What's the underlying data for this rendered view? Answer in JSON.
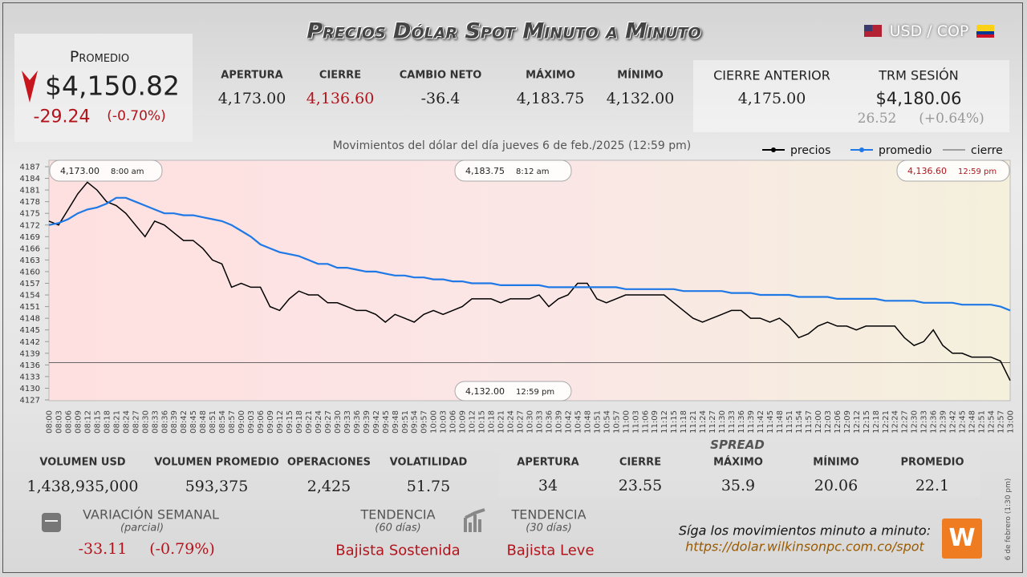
{
  "header": {
    "title": "Precios Dólar Spot Minuto a Minuto",
    "pair": "USD / COP"
  },
  "summary": {
    "label": "Promedio",
    "price": "$4,150.82",
    "change": "-29.24",
    "change_pct": "(-0.70%)"
  },
  "session": {
    "items": [
      {
        "label": "APERTURA",
        "value": "4,173.00"
      },
      {
        "label": "CIERRE",
        "value": "4,136.60"
      },
      {
        "label": "CAMBIO NETO",
        "value": "-36.4"
      },
      {
        "label": "MÁXIMO",
        "value": "4,183.75"
      },
      {
        "label": "MÍNIMO",
        "value": "4,132.00"
      }
    ]
  },
  "previous": {
    "label": "CIERRE ANTERIOR",
    "value": "4,175.00"
  },
  "trm": {
    "label": "TRM SESIÓN",
    "value": "$4,180.06",
    "change": "26.52",
    "change_pct": "(+0.64%)"
  },
  "chart_data": {
    "type": "line",
    "subtitle": "Movimientos del dólar del día jueves 6 de feb./2025 (12:59 pm)",
    "categories": [
      "08:00",
      "08:03",
      "08:06",
      "08:09",
      "08:12",
      "08:15",
      "08:18",
      "08:21",
      "08:24",
      "08:27",
      "08:30",
      "08:33",
      "08:36",
      "08:39",
      "08:42",
      "08:45",
      "08:48",
      "08:51",
      "08:54",
      "08:57",
      "09:00",
      "09:03",
      "09:06",
      "09:09",
      "09:12",
      "09:15",
      "09:18",
      "09:21",
      "09:24",
      "09:27",
      "09:30",
      "09:33",
      "09:36",
      "09:39",
      "09:42",
      "09:45",
      "09:48",
      "09:51",
      "09:54",
      "09:57",
      "10:00",
      "10:03",
      "10:06",
      "10:09",
      "10:12",
      "10:15",
      "10:18",
      "10:21",
      "10:24",
      "10:27",
      "10:30",
      "10:33",
      "10:36",
      "10:39",
      "10:42",
      "10:45",
      "10:48",
      "10:51",
      "10:54",
      "10:57",
      "11:00",
      "11:03",
      "11:06",
      "11:09",
      "11:12",
      "11:15",
      "11:18",
      "11:21",
      "11:24",
      "11:27",
      "11:30",
      "11:33",
      "11:36",
      "11:39",
      "11:42",
      "11:45",
      "11:48",
      "11:51",
      "11:54",
      "11:57",
      "12:00",
      "12:03",
      "12:06",
      "12:09",
      "12:12",
      "12:15",
      "12:18",
      "12:21",
      "12:24",
      "12:27",
      "12:30",
      "12:33",
      "12:36",
      "12:39",
      "12:42",
      "12:45",
      "12:48",
      "12:51",
      "12:54",
      "12:57",
      "13:00"
    ],
    "series": [
      {
        "name": "precios",
        "color": "#000000",
        "values": [
          4173,
          4172,
          4176,
          4180,
          4183,
          4181,
          4178,
          4177,
          4175,
          4172,
          4169,
          4173,
          4172,
          4170,
          4168,
          4168,
          4166,
          4163,
          4162,
          4156,
          4157,
          4156,
          4156,
          4151,
          4150,
          4153,
          4155,
          4154,
          4154,
          4152,
          4152,
          4151,
          4150,
          4150,
          4149,
          4147,
          4149,
          4148,
          4147,
          4149,
          4150,
          4149,
          4150,
          4151,
          4153,
          4153,
          4153,
          4152,
          4153,
          4153,
          4153,
          4154,
          4151,
          4153,
          4154,
          4157,
          4157,
          4153,
          4152,
          4153,
          4154,
          4154,
          4154,
          4154,
          4154,
          4152,
          4150,
          4148,
          4147,
          4148,
          4149,
          4150,
          4150,
          4148,
          4148,
          4147,
          4148,
          4146,
          4143,
          4144,
          4146,
          4147,
          4146,
          4146,
          4145,
          4146,
          4146,
          4146,
          4146,
          4143,
          4141,
          4142,
          4145,
          4141,
          4139,
          4139,
          4138,
          4138,
          4138,
          4137,
          4132
        ]
      },
      {
        "name": "promedio",
        "color": "#1e78e6",
        "values": [
          4172,
          4172.5,
          4173.5,
          4175,
          4176,
          4176.5,
          4177.5,
          4179,
          4179,
          4178,
          4177,
          4176,
          4175,
          4175,
          4174.5,
          4174.5,
          4174,
          4173.5,
          4173,
          4172,
          4170.5,
          4169,
          4167,
          4166,
          4165,
          4164.5,
          4164,
          4163,
          4162,
          4162,
          4161,
          4161,
          4160.5,
          4160,
          4160,
          4159.5,
          4159,
          4159,
          4158.5,
          4158.5,
          4158,
          4158,
          4157.5,
          4157.5,
          4157,
          4157,
          4157,
          4156.5,
          4156.5,
          4156.5,
          4156.5,
          4156.5,
          4156,
          4156,
          4156,
          4156,
          4156,
          4156,
          4156,
          4156,
          4155.5,
          4155.5,
          4155.5,
          4155.5,
          4155.5,
          4155.5,
          4155,
          4155,
          4155,
          4155,
          4155,
          4154.5,
          4154.5,
          4154.5,
          4154,
          4154,
          4154,
          4154,
          4153.5,
          4153.5,
          4153.5,
          4153.5,
          4153,
          4153,
          4153,
          4153,
          4153,
          4152.5,
          4152.5,
          4152.5,
          4152.5,
          4152,
          4152,
          4152,
          4152,
          4151.5,
          4151.5,
          4151.5,
          4151.5,
          4151,
          4150
        ]
      }
    ],
    "reference": {
      "name": "cierre",
      "value": 4136.6,
      "color": "#555555"
    },
    "annotations": [
      {
        "label": "4,173.00",
        "time": "8:00 am"
      },
      {
        "label": "4,183.75",
        "time": "8:12 am"
      },
      {
        "label": "4,136.60",
        "time": "12:59 pm"
      },
      {
        "label": "4,132.00",
        "time": "12:59 pm"
      }
    ],
    "ylim": [
      4127,
      4187
    ],
    "yticks": [
      4127,
      4130,
      4133,
      4136,
      4139,
      4142,
      4145,
      4148,
      4151,
      4154,
      4157,
      4160,
      4163,
      4166,
      4169,
      4172,
      4175,
      4178,
      4181,
      4184,
      4187
    ],
    "grid": false,
    "legend": "top-right"
  },
  "market": {
    "items": [
      {
        "label": "VOLUMEN USD",
        "value": "1,438,935,000"
      },
      {
        "label": "VOLUMEN PROMEDIO",
        "value": "593,375"
      },
      {
        "label": "OPERACIONES",
        "value": "2,425"
      },
      {
        "label": "VOLATILIDAD",
        "value": "51.75"
      }
    ]
  },
  "spread": {
    "title": "SPREAD",
    "items": [
      {
        "label": "APERTURA",
        "value": "34"
      },
      {
        "label": "CIERRE",
        "value": "23.55"
      },
      {
        "label": "MÁXIMO",
        "value": "35.9"
      },
      {
        "label": "MÍNIMO",
        "value": "20.06"
      },
      {
        "label": "PROMEDIO",
        "value": "22.1"
      }
    ]
  },
  "weekly": {
    "label": "VARIACIÓN SEMANAL",
    "note": "(parcial)",
    "change": "-33.11",
    "change_pct": "(-0.79%)"
  },
  "trends": [
    {
      "label": "TENDENCIA",
      "note": "(60 días)",
      "value": "Bajista Sostenida"
    },
    {
      "label": "TENDENCIA",
      "note": "(30 días)",
      "value": "Bajista Leve"
    }
  ],
  "footer": {
    "text": "Síga los movimientos minuto a minuto:",
    "url": "https://dolar.wilkinsonpc.com.co/spot",
    "stamp": "6 de febrero (1:30 pm)"
  }
}
